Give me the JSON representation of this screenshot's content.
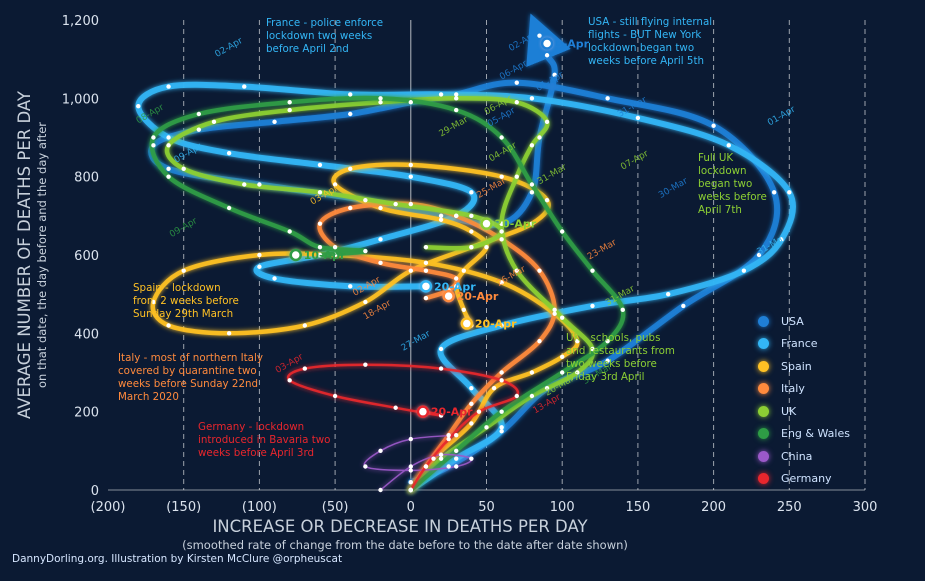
{
  "colors": {
    "background": "#0b1a33",
    "USA": "#1f7fd6",
    "France": "#33b5f5",
    "Spain": "#ffc124",
    "Italy": "#ff8a3d",
    "UK": "#8ccf34",
    "Eng & Wales": "#2e9c45",
    "China": "#9b59c9",
    "Germany": "#e8262d",
    "axis_text": "#c7d0db",
    "tick_text": "#dbe3ee"
  },
  "chart_data": {
    "type": "line",
    "xlabel": "INCREASE OR DECREASE IN DEATHS PER DAY",
    "xlabel_sub": "(smoothed rate of change from the date before to the date after date shown)",
    "ylabel": "AVERAGE NUMBER OF DEATHS PER DAY",
    "ylabel_sub": "on that date, the day before and the day after",
    "xlim": [
      -200,
      300
    ],
    "ylim": [
      0,
      1200
    ],
    "x_ticks": [
      "(200)",
      "(150)",
      "(100)",
      "(50)",
      "0",
      "50",
      "100",
      "150",
      "200",
      "250",
      "300"
    ],
    "y_ticks": [
      "0",
      "200",
      "400",
      "600",
      "800",
      "1,000",
      "1,200"
    ],
    "grid": "vertical dashed",
    "legend_position": "right",
    "legend": [
      "USA",
      "France",
      "Spain",
      "Italy",
      "UK",
      "Eng & Wales",
      "China",
      "Germany"
    ],
    "series": [
      {
        "name": "USA",
        "points": [
          [
            0,
            20
          ],
          [
            25,
            60
          ],
          [
            60,
            150
          ],
          [
            90,
            260
          ],
          [
            130,
            330
          ],
          [
            180,
            470
          ],
          [
            230,
            600
          ],
          [
            240,
            760
          ],
          [
            200,
            930
          ],
          [
            130,
            1000
          ],
          [
            70,
            1040
          ],
          [
            30,
            1010
          ],
          [
            0,
            990
          ],
          [
            -40,
            960
          ],
          [
            -90,
            940
          ],
          [
            -140,
            920
          ],
          [
            -170,
            880
          ],
          [
            -160,
            820
          ],
          [
            -100,
            780
          ],
          [
            -30,
            740
          ],
          [
            20,
            700
          ],
          [
            60,
            680
          ],
          [
            80,
            760
          ],
          [
            85,
            900
          ],
          [
            95,
            1060
          ],
          [
            90,
            1110
          ],
          [
            85,
            1160
          ]
        ]
      },
      {
        "name": "France",
        "points": [
          [
            0,
            0
          ],
          [
            30,
            80
          ],
          [
            60,
            160
          ],
          [
            40,
            260
          ],
          [
            20,
            360
          ],
          [
            60,
            420
          ],
          [
            120,
            470
          ],
          [
            170,
            500
          ],
          [
            220,
            560
          ],
          [
            245,
            640
          ],
          [
            250,
            760
          ],
          [
            210,
            880
          ],
          [
            150,
            950
          ],
          [
            80,
            1000
          ],
          [
            20,
            1010
          ],
          [
            -40,
            1010
          ],
          [
            -110,
            1030
          ],
          [
            -160,
            1030
          ],
          [
            -180,
            980
          ],
          [
            -160,
            900
          ],
          [
            -120,
            860
          ],
          [
            -60,
            830
          ],
          [
            0,
            800
          ],
          [
            40,
            760
          ],
          [
            30,
            700
          ],
          [
            -20,
            640
          ],
          [
            -60,
            600
          ],
          [
            -100,
            570
          ],
          [
            -90,
            540
          ],
          [
            -40,
            520
          ],
          [
            10,
            520
          ]
        ]
      },
      {
        "name": "Spain",
        "points": [
          [
            0,
            0
          ],
          [
            15,
            80
          ],
          [
            40,
            170
          ],
          [
            55,
            260
          ],
          [
            80,
            300
          ],
          [
            100,
            340
          ],
          [
            110,
            380
          ],
          [
            95,
            450
          ],
          [
            60,
            530
          ],
          [
            10,
            580
          ],
          [
            -50,
            600
          ],
          [
            -100,
            600
          ],
          [
            -150,
            560
          ],
          [
            -170,
            480
          ],
          [
            -160,
            420
          ],
          [
            -120,
            400
          ],
          [
            -70,
            420
          ],
          [
            -30,
            480
          ],
          [
            0,
            560
          ],
          [
            40,
            620
          ],
          [
            80,
            680
          ],
          [
            90,
            740
          ],
          [
            60,
            800
          ],
          [
            0,
            830
          ],
          [
            -40,
            820
          ],
          [
            -50,
            780
          ],
          [
            -20,
            720
          ],
          [
            20,
            690
          ],
          [
            40,
            660
          ],
          [
            50,
            620
          ],
          [
            35,
            560
          ],
          [
            30,
            520
          ],
          [
            35,
            460
          ],
          [
            40,
            420
          ]
        ]
      },
      {
        "name": "Italy",
        "points": [
          [
            0,
            0
          ],
          [
            10,
            60
          ],
          [
            25,
            140
          ],
          [
            40,
            220
          ],
          [
            60,
            300
          ],
          [
            85,
            380
          ],
          [
            95,
            460
          ],
          [
            85,
            560
          ],
          [
            60,
            640
          ],
          [
            30,
            700
          ],
          [
            0,
            730
          ],
          [
            -40,
            720
          ],
          [
            -60,
            680
          ],
          [
            -50,
            620
          ],
          [
            -20,
            580
          ],
          [
            10,
            560
          ],
          [
            30,
            540
          ],
          [
            25,
            510
          ],
          [
            10,
            490
          ]
        ]
      },
      {
        "name": "UK",
        "points": [
          [
            0,
            0
          ],
          [
            20,
            80
          ],
          [
            50,
            160
          ],
          [
            80,
            240
          ],
          [
            110,
            300
          ],
          [
            120,
            360
          ],
          [
            100,
            440
          ],
          [
            70,
            560
          ],
          [
            60,
            680
          ],
          [
            70,
            800
          ],
          [
            80,
            880
          ],
          [
            90,
            940
          ],
          [
            70,
            990
          ],
          [
            30,
            1000
          ],
          [
            -20,
            990
          ],
          [
            -80,
            970
          ],
          [
            -130,
            940
          ],
          [
            -160,
            880
          ],
          [
            -150,
            820
          ],
          [
            -110,
            780
          ],
          [
            -60,
            760
          ],
          [
            -10,
            730
          ],
          [
            40,
            700
          ],
          [
            60,
            660
          ],
          [
            40,
            620
          ],
          [
            10,
            620
          ]
        ]
      },
      {
        "name": "Eng & Wales",
        "points": [
          [
            0,
            0
          ],
          [
            30,
            100
          ],
          [
            60,
            200
          ],
          [
            100,
            300
          ],
          [
            130,
            380
          ],
          [
            140,
            460
          ],
          [
            120,
            560
          ],
          [
            100,
            660
          ],
          [
            80,
            780
          ],
          [
            60,
            900
          ],
          [
            30,
            970
          ],
          [
            -20,
            1000
          ],
          [
            -80,
            990
          ],
          [
            -140,
            960
          ],
          [
            -170,
            900
          ],
          [
            -160,
            800
          ],
          [
            -120,
            720
          ],
          [
            -80,
            660
          ],
          [
            -60,
            620
          ],
          [
            -30,
            610
          ],
          [
            -60,
            600
          ]
        ]
      },
      {
        "name": "China",
        "points": [
          [
            -20,
            0
          ],
          [
            0,
            60
          ],
          [
            20,
            90
          ],
          [
            40,
            80
          ],
          [
            30,
            60
          ],
          [
            0,
            50
          ],
          [
            -30,
            60
          ],
          [
            -20,
            100
          ],
          [
            0,
            130
          ],
          [
            30,
            140
          ]
        ]
      },
      {
        "name": "Germany",
        "points": [
          [
            0,
            0
          ],
          [
            10,
            60
          ],
          [
            25,
            130
          ],
          [
            45,
            200
          ],
          [
            70,
            240
          ],
          [
            60,
            280
          ],
          [
            20,
            310
          ],
          [
            -30,
            320
          ],
          [
            -70,
            310
          ],
          [
            -80,
            280
          ],
          [
            -50,
            240
          ],
          [
            -10,
            210
          ],
          [
            20,
            190
          ],
          [
            10,
            200
          ]
        ]
      }
    ],
    "highlighted_points": [
      {
        "label": "3-Apr",
        "series": "USA",
        "x": 90,
        "y": 1140
      },
      {
        "label": "20-Apr",
        "series": "France",
        "x": 10,
        "y": 520
      },
      {
        "label": "20-Apr",
        "series": "Italy",
        "x": 25,
        "y": 495
      },
      {
        "label": "20-Apr",
        "series": "Spain",
        "x": 37,
        "y": 425
      },
      {
        "label": "20-Apr",
        "series": "UK",
        "x": 50,
        "y": 680
      },
      {
        "label": "10-Apr",
        "series": "Eng & Wales",
        "x": -76,
        "y": 600
      },
      {
        "label": "20-Apr",
        "series": "Germany",
        "x": 8,
        "y": 200
      }
    ],
    "date_labels": [
      {
        "text": "02-Apr",
        "series": "France",
        "x": -128,
        "y": 1105
      },
      {
        "text": "02-Apr",
        "series": "USA",
        "x": 66,
        "y": 1120
      },
      {
        "text": "01-Apr",
        "series": "USA",
        "x": 84,
        "y": 1018
      },
      {
        "text": "06-Apr",
        "series": "USA",
        "x": 60,
        "y": 1047
      },
      {
        "text": "31-Mar",
        "series": "USA",
        "x": 138,
        "y": 952
      },
      {
        "text": "01-Apr",
        "series": "France",
        "x": 237,
        "y": 930
      },
      {
        "text": "30-Mar",
        "series": "USA",
        "x": 165,
        "y": 745
      },
      {
        "text": "31-Mar",
        "series": "France",
        "x": 230,
        "y": 600
      },
      {
        "text": "31-Mar",
        "series": "UK",
        "x": 130,
        "y": 470
      },
      {
        "text": "05-Apr",
        "series": "USA",
        "x": 52,
        "y": 927
      },
      {
        "text": "04-Apr",
        "series": "UK",
        "x": 53,
        "y": 838
      },
      {
        "text": "06-Apr",
        "series": "UK",
        "x": 50,
        "y": 958
      },
      {
        "text": "29-Mar",
        "series": "UK",
        "x": 20,
        "y": 902
      },
      {
        "text": "31-Mar",
        "series": "UK",
        "x": 85,
        "y": 780
      },
      {
        "text": "07-Apr",
        "series": "UK",
        "x": 140,
        "y": 817
      },
      {
        "text": "25-Mar",
        "series": "Italy",
        "x": 45,
        "y": 745
      },
      {
        "text": "23-Mar",
        "series": "Italy",
        "x": 118,
        "y": 588
      },
      {
        "text": "26-Mar",
        "series": "Italy",
        "x": 58,
        "y": 520
      },
      {
        "text": "02-Apr",
        "series": "Italy",
        "x": -37,
        "y": 495
      },
      {
        "text": "18-Apr",
        "series": "Italy",
        "x": -30,
        "y": 435
      },
      {
        "text": "03-Apr",
        "series": "Spain",
        "x": -65,
        "y": 728
      },
      {
        "text": "08-Apr",
        "series": "Eng & Wales",
        "x": -180,
        "y": 935
      },
      {
        "text": "09-Apr",
        "series": "France",
        "x": -155,
        "y": 835
      },
      {
        "text": "09-Apr",
        "series": "Eng & Wales",
        "x": -158,
        "y": 645
      },
      {
        "text": "27-Mar",
        "series": "France",
        "x": -5,
        "y": 355
      },
      {
        "text": "20-Mar",
        "series": "UK",
        "x": 90,
        "y": 240
      },
      {
        "text": "30-Mar",
        "series": "Eng & Wales",
        "x": 115,
        "y": 270
      },
      {
        "text": "13-Apr",
        "series": "Germany",
        "x": 82,
        "y": 195
      },
      {
        "text": "03-Apr",
        "series": "Germany",
        "x": -88,
        "y": 298
      }
    ],
    "annotations": [
      {
        "series": "France",
        "lines": [
          "France - police enforce",
          "lockdown two weeks",
          "before April 2nd"
        ]
      },
      {
        "series": "USA",
        "lines": [
          "USA - still flying internal",
          "flights - BUT New York",
          "lockdown began two",
          "weeks before April 5th"
        ]
      },
      {
        "series": "UK",
        "lines": [
          "Full UK",
          "lockdown",
          "began two",
          "weeks before",
          "April 7th"
        ]
      },
      {
        "series": "Spain",
        "lines": [
          "Spain - lockdown",
          "from 2 weeks before",
          "Sunday 29th March"
        ]
      },
      {
        "series": "Italy",
        "lines": [
          "Italy - most of northern Italy",
          "covered by quarantine two",
          "weeks before Sunday 22nd",
          "March 2020"
        ]
      },
      {
        "series": "UK",
        "lines": [
          "UK - schools, pubs",
          "and restaurants from",
          "two weeks before",
          "Friday 3rd April"
        ]
      },
      {
        "series": "Germany",
        "lines": [
          "Germany - lockdown",
          "introduced in Bavaria two",
          "weeks before April 3rd"
        ]
      }
    ]
  },
  "credit": "DannyDorling.org. Illustration by Kirsten McClure @orpheuscat"
}
